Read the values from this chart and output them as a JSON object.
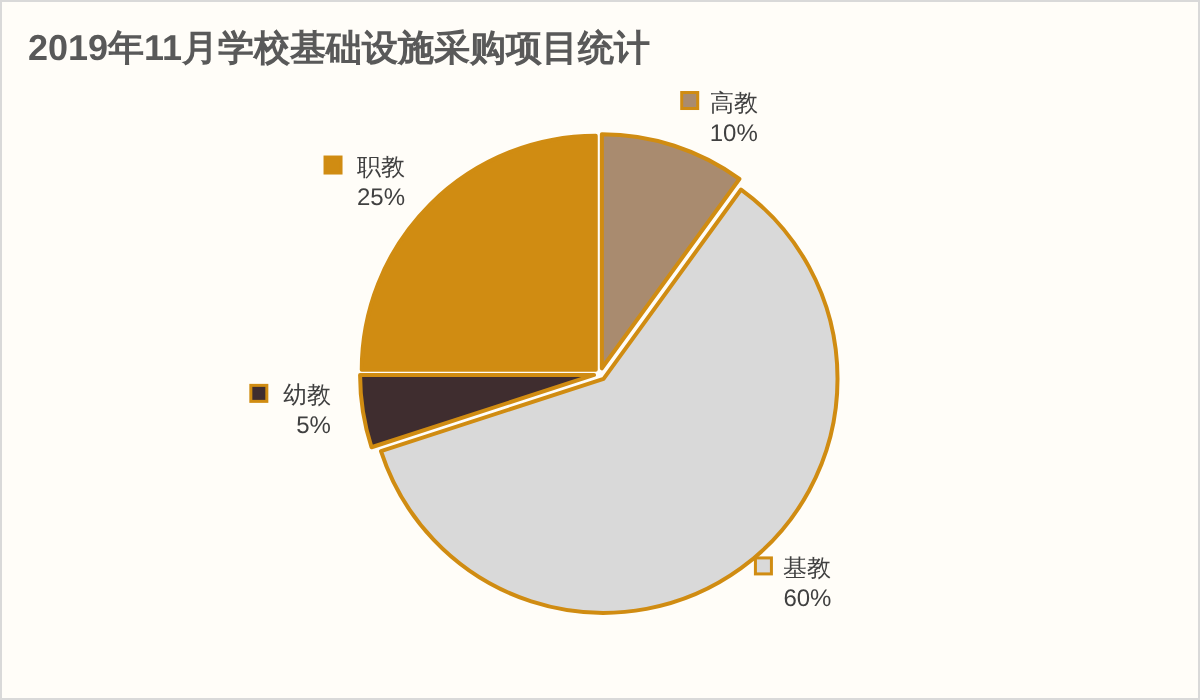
{
  "chart_data": {
    "type": "pie",
    "title": "2019年11月学校基础设施采购项目统计",
    "categories": [
      "高教",
      "基教",
      "幼教",
      "职教"
    ],
    "values": [
      10,
      60,
      5,
      25
    ],
    "colors": [
      "#a98b6f",
      "#d9d9d9",
      "#3f2d2f",
      "#d08c12"
    ],
    "value_labels": [
      "10%",
      "60%",
      "5%",
      "25%"
    ],
    "legend": "top left"
  }
}
